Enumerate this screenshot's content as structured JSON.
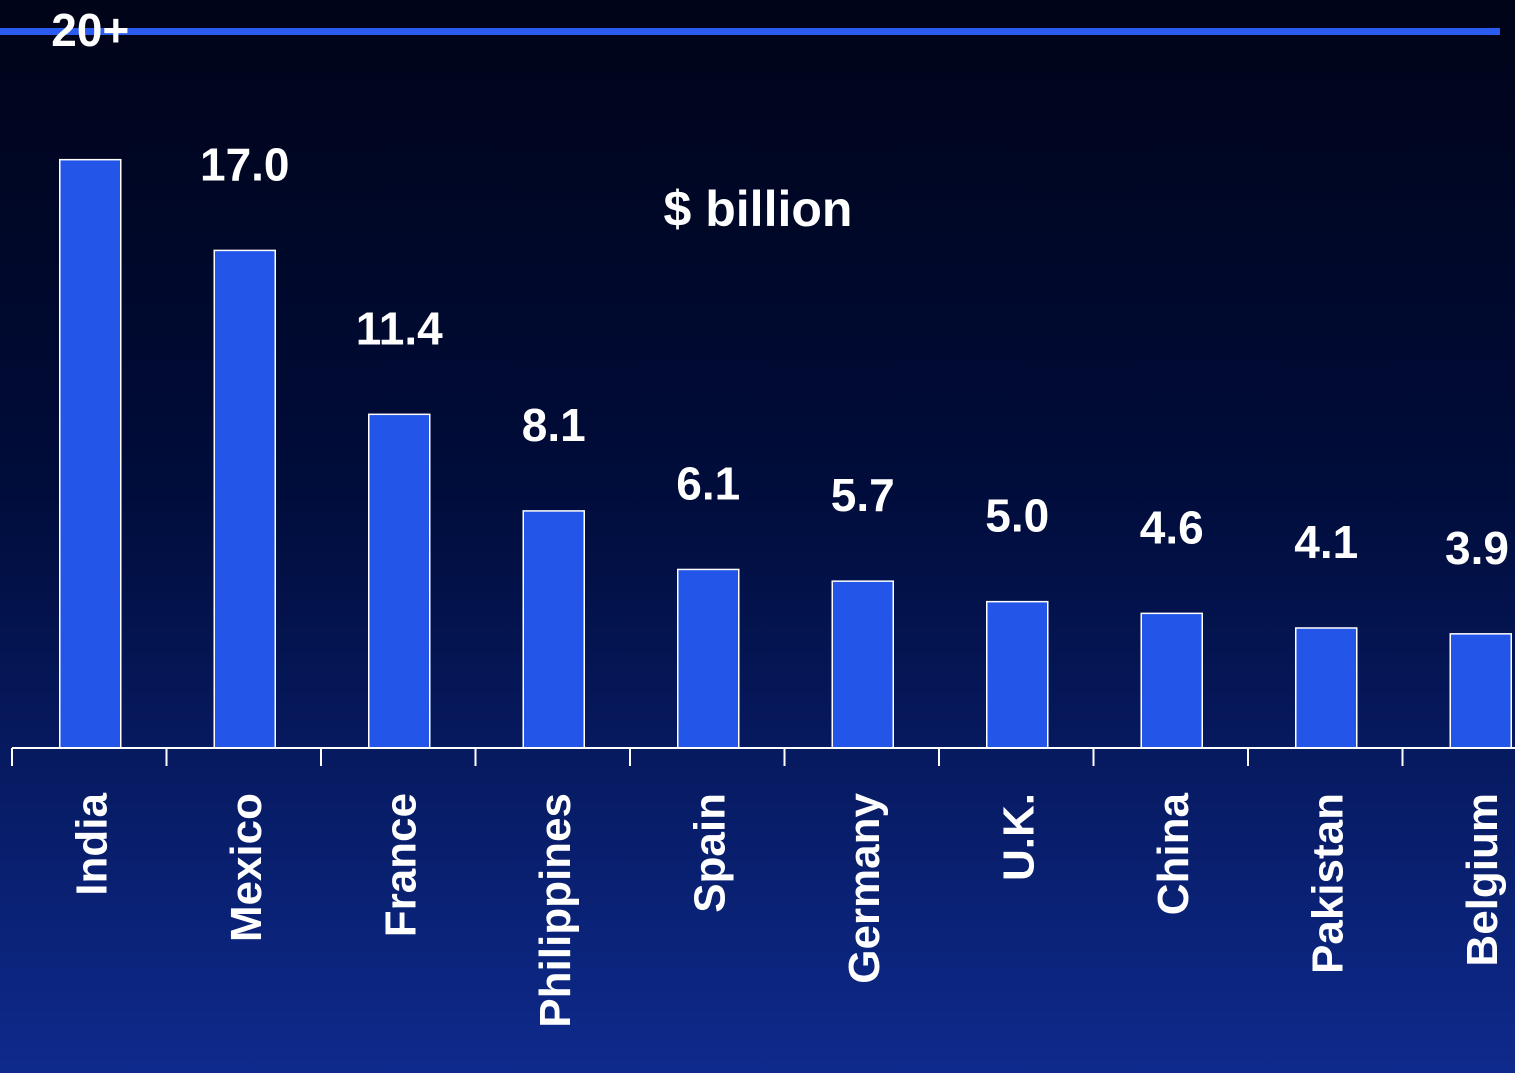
{
  "chart_data": {
    "type": "bar",
    "unit_label": "$ billion",
    "categories": [
      "India",
      "Mexico",
      "France",
      "Philippines",
      "Spain",
      "Germany",
      "U.K.",
      "China",
      "Pakistan",
      "Belgium"
    ],
    "values": [
      20.1,
      17.0,
      11.4,
      8.1,
      6.1,
      5.7,
      5.0,
      4.6,
      4.1,
      3.9
    ],
    "value_labels": [
      "20+",
      "17.0",
      "11.4",
      "8.1",
      "6.1",
      "5.7",
      "5.0",
      "4.6",
      "4.1",
      "3.9"
    ],
    "ylim": [
      0,
      23.3
    ],
    "grid": false,
    "bar_color": "#2255e8",
    "bar_outline_color": "#ffffff",
    "header_rule_color": "#2a5cf0",
    "text_color": "#ffffff"
  }
}
